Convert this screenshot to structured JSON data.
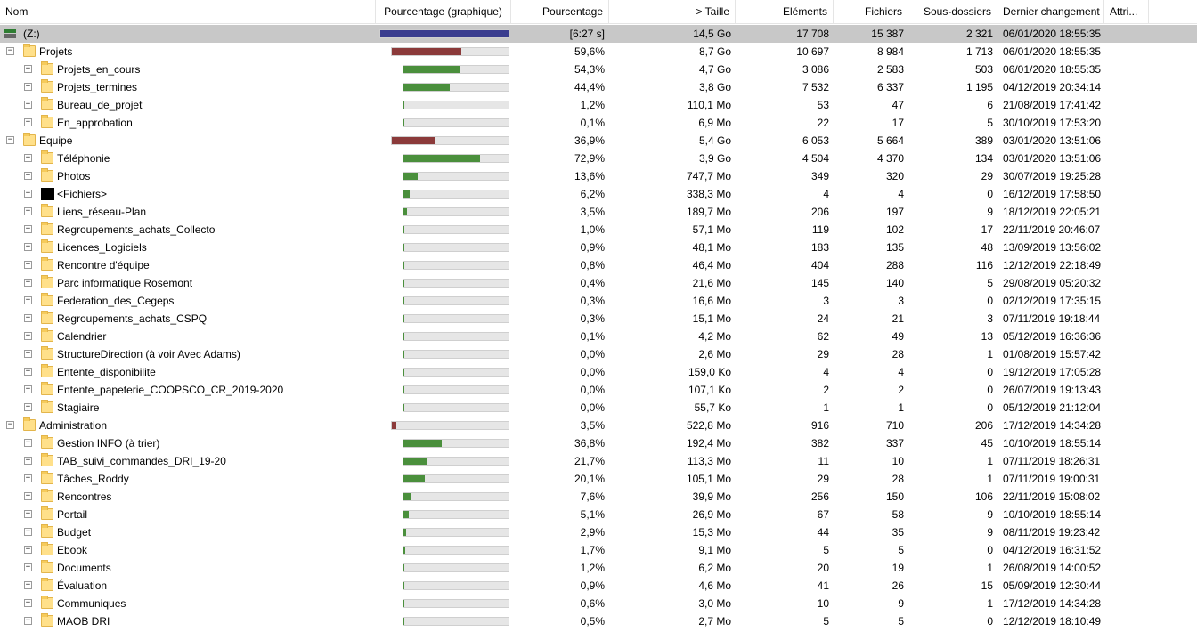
{
  "columns": [
    "Nom",
    "Pourcentage (graphique)",
    "Pourcentage",
    "> Taille",
    "Eléments",
    "Fichiers",
    "Sous-dossiers",
    "Dernier changement",
    "Attri..."
  ],
  "colors": {
    "green_bar": "#4a8f3c",
    "red_bar": "#8b3a3a",
    "blue_bar": "#3a3d8f",
    "selected_row": "#c8c8c8"
  },
  "rows": [
    {
      "level": 0,
      "type": "drive",
      "expander": "",
      "name": "(Z:)",
      "pct": "[6:27 s]",
      "fill": 1.0,
      "color": "blue",
      "size": "14,5 Go",
      "elements": "17 708",
      "files": "15 387",
      "subdirs": "2 321",
      "changed": "06/01/2020  18:55:35",
      "selected": true
    },
    {
      "level": 0,
      "type": "folder",
      "expander": "−",
      "name": "Projets",
      "pct": "59,6%",
      "fill": 0.596,
      "color": "red",
      "size": "8,7 Go",
      "elements": "10 697",
      "files": "8 984",
      "subdirs": "1 713",
      "changed": "06/01/2020  18:55:35"
    },
    {
      "level": 1,
      "type": "folder",
      "expander": "+",
      "name": "Projets_en_cours",
      "pct": "54,3%",
      "fill": 0.543,
      "color": "green",
      "size": "4,7 Go",
      "elements": "3 086",
      "files": "2 583",
      "subdirs": "503",
      "changed": "06/01/2020  18:55:35"
    },
    {
      "level": 1,
      "type": "folder",
      "expander": "+",
      "name": "Projets_termines",
      "pct": "44,4%",
      "fill": 0.444,
      "color": "green",
      "size": "3,8 Go",
      "elements": "7 532",
      "files": "6 337",
      "subdirs": "1 195",
      "changed": "04/12/2019  20:34:14"
    },
    {
      "level": 1,
      "type": "folder",
      "expander": "+",
      "name": "Bureau_de_projet",
      "pct": "1,2%",
      "fill": 0.012,
      "color": "green",
      "size": "110,1 Mo",
      "elements": "53",
      "files": "47",
      "subdirs": "6",
      "changed": "21/08/2019  17:41:42"
    },
    {
      "level": 1,
      "type": "folder",
      "expander": "+",
      "name": "En_approbation",
      "pct": "0,1%",
      "fill": 0.001,
      "color": "green",
      "size": "6,9 Mo",
      "elements": "22",
      "files": "17",
      "subdirs": "5",
      "changed": "30/10/2019  17:53:20"
    },
    {
      "level": 0,
      "type": "folder",
      "expander": "−",
      "name": "Equipe",
      "pct": "36,9%",
      "fill": 0.369,
      "color": "red",
      "size": "5,4 Go",
      "elements": "6 053",
      "files": "5 664",
      "subdirs": "389",
      "changed": "03/01/2020  13:51:06"
    },
    {
      "level": 1,
      "type": "folder",
      "expander": "+",
      "name": "Téléphonie",
      "pct": "72,9%",
      "fill": 0.729,
      "color": "green",
      "size": "3,9 Go",
      "elements": "4 504",
      "files": "4 370",
      "subdirs": "134",
      "changed": "03/01/2020  13:51:06"
    },
    {
      "level": 1,
      "type": "folder",
      "expander": "+",
      "name": "Photos",
      "pct": "13,6%",
      "fill": 0.136,
      "color": "green",
      "size": "747,7 Mo",
      "elements": "349",
      "files": "320",
      "subdirs": "29",
      "changed": "30/07/2019  19:25:28"
    },
    {
      "level": 1,
      "type": "files",
      "expander": "+",
      "name": "<Fichiers>",
      "pct": "6,2%",
      "fill": 0.062,
      "color": "green",
      "size": "338,3 Mo",
      "elements": "4",
      "files": "4",
      "subdirs": "0",
      "changed": "16/12/2019  17:58:50"
    },
    {
      "level": 1,
      "type": "folder",
      "expander": "+",
      "name": "Liens_réseau-Plan",
      "pct": "3,5%",
      "fill": 0.035,
      "color": "green",
      "size": "189,7 Mo",
      "elements": "206",
      "files": "197",
      "subdirs": "9",
      "changed": "18/12/2019  22:05:21"
    },
    {
      "level": 1,
      "type": "folder",
      "expander": "+",
      "name": "Regroupements_achats_Collecto",
      "pct": "1,0%",
      "fill": 0.01,
      "color": "green",
      "size": "57,1 Mo",
      "elements": "119",
      "files": "102",
      "subdirs": "17",
      "changed": "22/11/2019  20:46:07"
    },
    {
      "level": 1,
      "type": "folder",
      "expander": "+",
      "name": "Licences_Logiciels",
      "pct": "0,9%",
      "fill": 0.009,
      "color": "green",
      "size": "48,1 Mo",
      "elements": "183",
      "files": "135",
      "subdirs": "48",
      "changed": "13/09/2019  13:56:02"
    },
    {
      "level": 1,
      "type": "folder",
      "expander": "+",
      "name": "Rencontre d'équipe",
      "pct": "0,8%",
      "fill": 0.008,
      "color": "green",
      "size": "46,4 Mo",
      "elements": "404",
      "files": "288",
      "subdirs": "116",
      "changed": "12/12/2019  22:18:49"
    },
    {
      "level": 1,
      "type": "folder",
      "expander": "+",
      "name": "Parc informatique Rosemont",
      "pct": "0,4%",
      "fill": 0.004,
      "color": "green",
      "size": "21,6 Mo",
      "elements": "145",
      "files": "140",
      "subdirs": "5",
      "changed": "29/08/2019  05:20:32"
    },
    {
      "level": 1,
      "type": "folder",
      "expander": "+",
      "name": "Federation_des_Cegeps",
      "pct": "0,3%",
      "fill": 0.003,
      "color": "green",
      "size": "16,6 Mo",
      "elements": "3",
      "files": "3",
      "subdirs": "0",
      "changed": "02/12/2019  17:35:15"
    },
    {
      "level": 1,
      "type": "folder",
      "expander": "+",
      "name": "Regroupements_achats_CSPQ",
      "pct": "0,3%",
      "fill": 0.003,
      "color": "green",
      "size": "15,1 Mo",
      "elements": "24",
      "files": "21",
      "subdirs": "3",
      "changed": "07/11/2019  19:18:44"
    },
    {
      "level": 1,
      "type": "folder",
      "expander": "+",
      "name": "Calendrier",
      "pct": "0,1%",
      "fill": 0.001,
      "color": "green",
      "size": "4,2 Mo",
      "elements": "62",
      "files": "49",
      "subdirs": "13",
      "changed": "05/12/2019  16:36:36"
    },
    {
      "level": 1,
      "type": "folder",
      "expander": "+",
      "name": "StructureDirection (à voir Avec Adams)",
      "pct": "0,0%",
      "fill": 0.0,
      "color": "green",
      "size": "2,6 Mo",
      "elements": "29",
      "files": "28",
      "subdirs": "1",
      "changed": "01/08/2019  15:57:42"
    },
    {
      "level": 1,
      "type": "folder",
      "expander": "+",
      "name": "Entente_disponibilite",
      "pct": "0,0%",
      "fill": 0.0,
      "color": "green",
      "size": "159,0 Ko",
      "elements": "4",
      "files": "4",
      "subdirs": "0",
      "changed": "19/12/2019  17:05:28"
    },
    {
      "level": 1,
      "type": "folder",
      "expander": "+",
      "name": "Entente_papeterie_COOPSCO_CR_2019-2020",
      "pct": "0,0%",
      "fill": 0.0,
      "color": "green",
      "size": "107,1 Ko",
      "elements": "2",
      "files": "2",
      "subdirs": "0",
      "changed": "26/07/2019  19:13:43"
    },
    {
      "level": 1,
      "type": "folder",
      "expander": "+",
      "name": "Stagiaire",
      "pct": "0,0%",
      "fill": 0.0,
      "color": "green",
      "size": "55,7 Ko",
      "elements": "1",
      "files": "1",
      "subdirs": "0",
      "changed": "05/12/2019  21:12:04"
    },
    {
      "level": 0,
      "type": "folder",
      "expander": "−",
      "name": "Administration",
      "pct": "3,5%",
      "fill": 0.035,
      "color": "red",
      "size": "522,8 Mo",
      "elements": "916",
      "files": "710",
      "subdirs": "206",
      "changed": "17/12/2019  14:34:28"
    },
    {
      "level": 1,
      "type": "folder",
      "expander": "+",
      "name": "Gestion INFO (à trier)",
      "pct": "36,8%",
      "fill": 0.368,
      "color": "green",
      "size": "192,4 Mo",
      "elements": "382",
      "files": "337",
      "subdirs": "45",
      "changed": "10/10/2019  18:55:14"
    },
    {
      "level": 1,
      "type": "folder",
      "expander": "+",
      "name": "TAB_suivi_commandes_DRI_19-20",
      "pct": "21,7%",
      "fill": 0.217,
      "color": "green",
      "size": "113,3 Mo",
      "elements": "11",
      "files": "10",
      "subdirs": "1",
      "changed": "07/11/2019  18:26:31"
    },
    {
      "level": 1,
      "type": "folder",
      "expander": "+",
      "name": "Tâches_Roddy",
      "pct": "20,1%",
      "fill": 0.201,
      "color": "green",
      "size": "105,1 Mo",
      "elements": "29",
      "files": "28",
      "subdirs": "1",
      "changed": "07/11/2019  19:00:31"
    },
    {
      "level": 1,
      "type": "folder",
      "expander": "+",
      "name": "Rencontres",
      "pct": "7,6%",
      "fill": 0.076,
      "color": "green",
      "size": "39,9 Mo",
      "elements": "256",
      "files": "150",
      "subdirs": "106",
      "changed": "22/11/2019  15:08:02"
    },
    {
      "level": 1,
      "type": "folder",
      "expander": "+",
      "name": "Portail",
      "pct": "5,1%",
      "fill": 0.051,
      "color": "green",
      "size": "26,9 Mo",
      "elements": "67",
      "files": "58",
      "subdirs": "9",
      "changed": "10/10/2019  18:55:14"
    },
    {
      "level": 1,
      "type": "folder",
      "expander": "+",
      "name": "Budget",
      "pct": "2,9%",
      "fill": 0.029,
      "color": "green",
      "size": "15,3 Mo",
      "elements": "44",
      "files": "35",
      "subdirs": "9",
      "changed": "08/11/2019  19:23:42"
    },
    {
      "level": 1,
      "type": "folder",
      "expander": "+",
      "name": "Ebook",
      "pct": "1,7%",
      "fill": 0.017,
      "color": "green",
      "size": "9,1 Mo",
      "elements": "5",
      "files": "5",
      "subdirs": "0",
      "changed": "04/12/2019  16:31:52"
    },
    {
      "level": 1,
      "type": "folder",
      "expander": "+",
      "name": "Documents",
      "pct": "1,2%",
      "fill": 0.012,
      "color": "green",
      "size": "6,2 Mo",
      "elements": "20",
      "files": "19",
      "subdirs": "1",
      "changed": "26/08/2019  14:00:52"
    },
    {
      "level": 1,
      "type": "folder",
      "expander": "+",
      "name": "Évaluation",
      "pct": "0,9%",
      "fill": 0.009,
      "color": "green",
      "size": "4,6 Mo",
      "elements": "41",
      "files": "26",
      "subdirs": "15",
      "changed": "05/09/2019  12:30:44"
    },
    {
      "level": 1,
      "type": "folder",
      "expander": "+",
      "name": "Communiques",
      "pct": "0,6%",
      "fill": 0.006,
      "color": "green",
      "size": "3,0 Mo",
      "elements": "10",
      "files": "9",
      "subdirs": "1",
      "changed": "17/12/2019  14:34:28"
    },
    {
      "level": 1,
      "type": "folder",
      "expander": "+",
      "name": "MAOB DRI",
      "pct": "0,5%",
      "fill": 0.005,
      "color": "green",
      "size": "2,7 Mo",
      "elements": "5",
      "files": "5",
      "subdirs": "0",
      "changed": "12/12/2019  18:10:49"
    }
  ]
}
